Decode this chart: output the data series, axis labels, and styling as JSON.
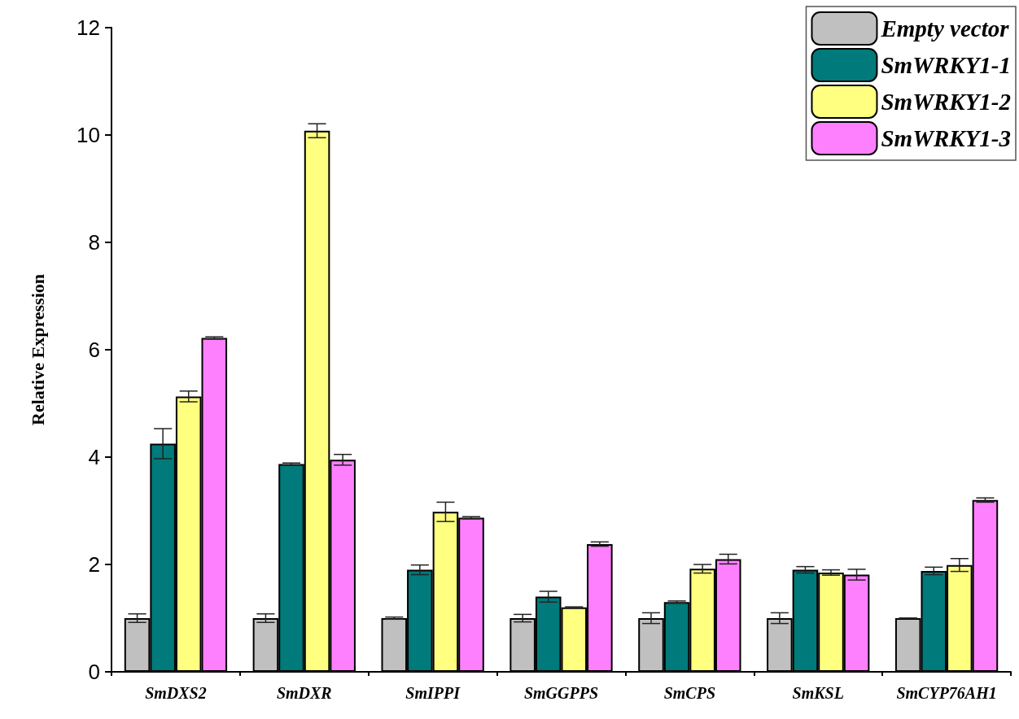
{
  "chart_data": {
    "type": "bar",
    "ylabel": "Relative Expression",
    "categories": [
      "SmDXS2",
      "SmDXR",
      "SmIPPI",
      "SmGGPPS",
      "SmCPS",
      "SmKSL",
      "SmCYP76AH1"
    ],
    "series": [
      {
        "name": "Empty vector",
        "color": "#c0c0c0",
        "values": [
          1.0,
          1.0,
          1.0,
          1.0,
          1.0,
          1.0,
          1.0
        ],
        "errors": [
          0.08,
          0.08,
          0.02,
          0.07,
          0.1,
          0.1,
          0
        ]
      },
      {
        "name": "SmWRKY1-1",
        "color": "#007a7a",
        "values": [
          4.25,
          3.87,
          1.9,
          1.4,
          1.3,
          1.9,
          1.88
        ],
        "errors": [
          0.28,
          0.02,
          0.09,
          0.1,
          0.02,
          0.06,
          0.07
        ]
      },
      {
        "name": "SmWRKY1-2",
        "color": "#ffff80",
        "values": [
          5.13,
          10.08,
          2.98,
          1.2,
          1.92,
          1.85,
          1.99
        ],
        "errors": [
          0.1,
          0.13,
          0.18,
          0.01,
          0.08,
          0.05,
          0.12
        ]
      },
      {
        "name": "SmWRKY1-3",
        "color": "#ff80ff",
        "values": [
          6.22,
          3.95,
          2.87,
          2.38,
          2.1,
          1.81,
          3.2
        ],
        "errors": [
          0.02,
          0.1,
          0.02,
          0.04,
          0.09,
          0.1,
          0.04
        ]
      }
    ],
    "ylim": [
      0,
      12
    ],
    "yticks": [
      0,
      2,
      4,
      6,
      8,
      10,
      12
    ],
    "grid": false,
    "legend": "top right"
  }
}
